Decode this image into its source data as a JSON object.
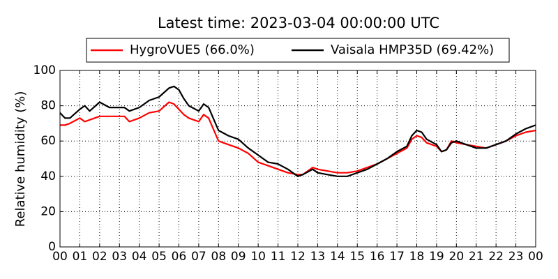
{
  "chart_data": {
    "type": "line",
    "title": "Latest time: 2023-03-04 00:00:00 UTC",
    "y_label": "Relative humidity (%)",
    "x": [
      0,
      0.25,
      0.5,
      1,
      1.25,
      1.5,
      2,
      2.5,
      3,
      3.25,
      3.5,
      4,
      4.5,
      5,
      5.5,
      5.75,
      6,
      6.25,
      6.5,
      7,
      7.25,
      7.5,
      8,
      8.5,
      9,
      9.5,
      10,
      10.5,
      11,
      11.5,
      12,
      12.25,
      12.75,
      13,
      13.5,
      14,
      14.5,
      15,
      15.5,
      16,
      16.5,
      17,
      17.5,
      17.75,
      18,
      18.25,
      18.5,
      19,
      19.25,
      19.5,
      19.75,
      20,
      20.5,
      21,
      21.5,
      22,
      22.5,
      23,
      23.5,
      24
    ],
    "series": [
      {
        "name": "HygroVUE5 (66.0%)",
        "color": "#ff0000",
        "values": [
          69,
          69,
          70,
          73,
          71,
          72,
          74,
          74,
          74,
          74,
          71,
          73,
          76,
          77,
          82,
          81,
          78,
          75,
          73,
          71,
          75,
          73,
          60,
          58,
          56,
          53,
          48,
          46,
          44,
          42,
          41,
          41,
          45,
          44,
          43,
          42,
          42,
          43,
          45,
          47,
          50,
          53,
          56,
          61,
          63,
          62,
          59,
          57,
          54,
          55,
          60,
          59,
          58,
          57,
          56,
          58,
          60,
          63,
          65,
          66
        ]
      },
      {
        "name": "Vaisala HMP35D (69.42%)",
        "color": "#000000",
        "values": [
          76,
          73,
          73,
          78,
          80,
          77,
          82,
          79,
          79,
          79,
          77,
          79,
          83,
          85,
          90,
          91,
          89,
          84,
          80,
          77,
          81,
          79,
          66,
          63,
          61,
          56,
          52,
          48,
          47,
          44,
          40,
          41,
          44,
          42,
          41,
          40,
          40,
          42,
          44,
          47,
          50,
          54,
          57,
          63,
          66,
          65,
          61,
          58,
          54,
          55,
          59,
          60,
          58,
          56,
          56,
          58,
          60,
          64,
          67,
          69
        ]
      }
    ],
    "xlim": [
      0,
      24
    ],
    "xticks": [
      {
        "value": 0,
        "label": "00"
      },
      {
        "value": 1,
        "label": "01"
      },
      {
        "value": 2,
        "label": "02"
      },
      {
        "value": 3,
        "label": "03"
      },
      {
        "value": 4,
        "label": "04"
      },
      {
        "value": 5,
        "label": "05"
      },
      {
        "value": 6,
        "label": "06"
      },
      {
        "value": 7,
        "label": "07"
      },
      {
        "value": 8,
        "label": "08"
      },
      {
        "value": 9,
        "label": "09"
      },
      {
        "value": 10,
        "label": "10"
      },
      {
        "value": 11,
        "label": "11"
      },
      {
        "value": 12,
        "label": "12"
      },
      {
        "value": 13,
        "label": "13"
      },
      {
        "value": 14,
        "label": "14"
      },
      {
        "value": 15,
        "label": "15"
      },
      {
        "value": 16,
        "label": "16"
      },
      {
        "value": 17,
        "label": "17"
      },
      {
        "value": 18,
        "label": "18"
      },
      {
        "value": 19,
        "label": "19"
      },
      {
        "value": 20,
        "label": "20"
      },
      {
        "value": 21,
        "label": "21"
      },
      {
        "value": 22,
        "label": "22"
      },
      {
        "value": 23,
        "label": "23"
      },
      {
        "value": 24,
        "label": "00"
      }
    ],
    "ylim": [
      0,
      100
    ],
    "yticks": [
      0,
      20,
      40,
      60,
      80,
      100
    ],
    "grid": true,
    "legend": "top"
  }
}
